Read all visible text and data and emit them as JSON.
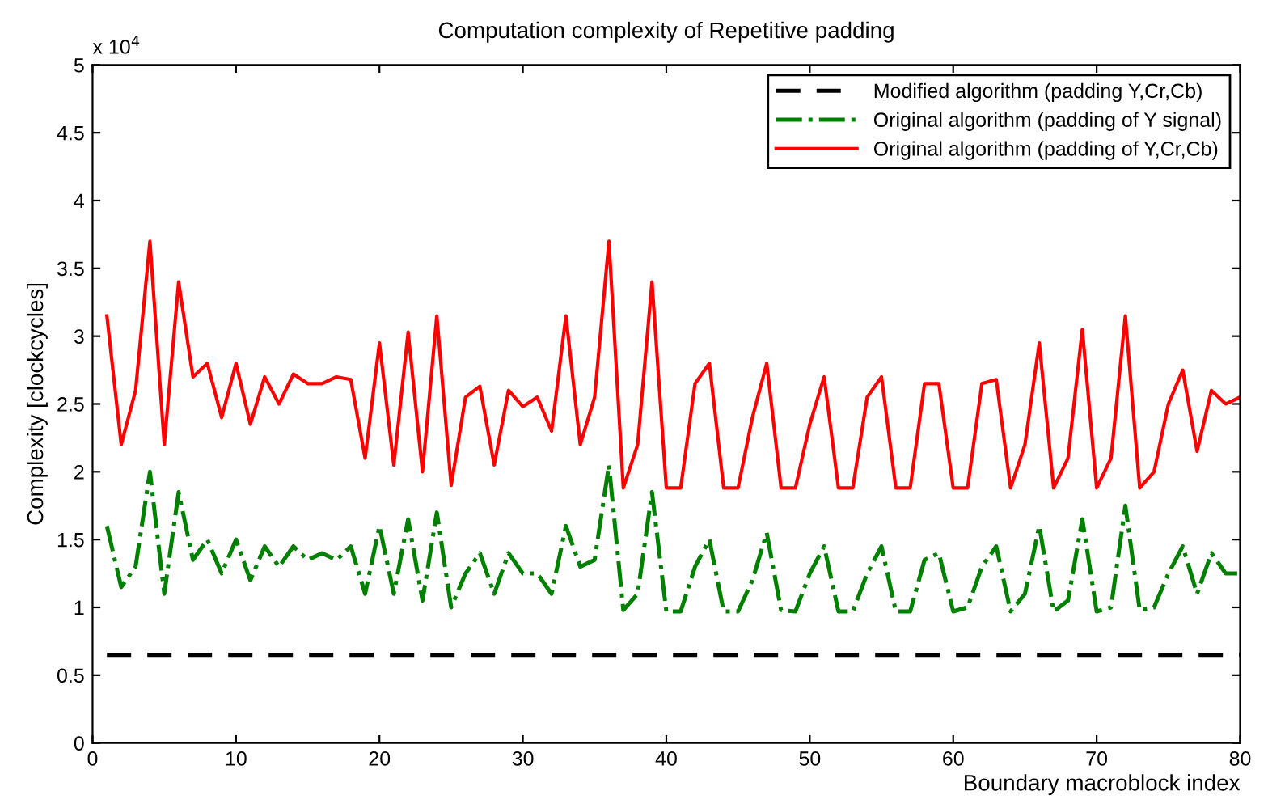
{
  "chart_data": {
    "type": "line",
    "title": "Computation complexity of Repetitive padding",
    "xlabel": "Boundary macroblock index",
    "ylabel": "Complexity [clockcycles]",
    "annotations": [
      "x 10$^{4}$"
    ],
    "x": [
      1,
      2,
      3,
      4,
      5,
      6,
      7,
      8,
      9,
      10,
      11,
      12,
      13,
      14,
      15,
      16,
      17,
      18,
      19,
      20,
      21,
      22,
      23,
      24,
      25,
      26,
      27,
      28,
      29,
      30,
      31,
      32,
      33,
      34,
      35,
      36,
      37,
      38,
      39,
      40,
      41,
      42,
      43,
      44,
      45,
      46,
      47,
      48,
      49,
      50,
      51,
      52,
      53,
      54,
      55,
      56,
      57,
      58,
      59,
      60,
      61,
      62,
      63,
      64,
      65,
      66,
      67,
      68,
      69,
      70,
      71,
      72,
      73,
      74,
      75,
      76,
      77,
      78,
      79,
      80
    ],
    "series": [
      {
        "name": "Modified algorithm (padding Y,Cr,Cb)",
        "color": "#000000",
        "line_style": "dashed",
        "values": [
          0.65,
          0.65,
          0.65,
          0.65,
          0.65,
          0.65,
          0.65,
          0.65,
          0.65,
          0.65,
          0.65,
          0.65,
          0.65,
          0.65,
          0.65,
          0.65,
          0.65,
          0.65,
          0.65,
          0.65,
          0.65,
          0.65,
          0.65,
          0.65,
          0.65,
          0.65,
          0.65,
          0.65,
          0.65,
          0.65,
          0.65,
          0.65,
          0.65,
          0.65,
          0.65,
          0.65,
          0.65,
          0.65,
          0.65,
          0.65,
          0.65,
          0.65,
          0.65,
          0.65,
          0.65,
          0.65,
          0.65,
          0.65,
          0.65,
          0.65,
          0.65,
          0.65,
          0.65,
          0.65,
          0.65,
          0.65,
          0.65,
          0.65,
          0.65,
          0.65,
          0.65,
          0.65,
          0.65,
          0.65,
          0.65,
          0.65,
          0.65,
          0.65,
          0.65,
          0.65,
          0.65,
          0.65,
          0.65,
          0.65,
          0.65,
          0.65,
          0.65,
          0.65,
          0.65,
          0.65
        ]
      },
      {
        "name": "Original algorithm (padding of Y signal)",
        "color": "#008000",
        "line_style": "dashdot",
        "values": [
          1.6,
          1.15,
          1.3,
          2.0,
          1.1,
          1.85,
          1.35,
          1.5,
          1.25,
          1.5,
          1.2,
          1.45,
          1.3,
          1.45,
          1.35,
          1.4,
          1.35,
          1.45,
          1.1,
          1.6,
          1.1,
          1.65,
          1.05,
          1.7,
          1.0,
          1.25,
          1.4,
          1.1,
          1.4,
          1.25,
          1.25,
          1.1,
          1.6,
          1.3,
          1.35,
          2.05,
          0.98,
          1.1,
          1.85,
          0.97,
          0.97,
          1.3,
          1.5,
          0.97,
          0.97,
          1.2,
          1.55,
          0.98,
          0.97,
          1.25,
          1.45,
          0.97,
          0.97,
          1.25,
          1.45,
          0.97,
          0.97,
          1.35,
          1.4,
          0.97,
          1.0,
          1.3,
          1.45,
          0.97,
          1.1,
          1.6,
          0.97,
          1.05,
          1.65,
          0.97,
          1.0,
          1.75,
          0.98,
          1.0,
          1.25,
          1.45,
          1.1,
          1.4,
          1.25,
          1.25
        ]
      },
      {
        "name": "Original algorithm (padding of Y,Cr,Cb)",
        "color": "#ff0000",
        "line_style": "solid",
        "values": [
          3.15,
          2.2,
          2.6,
          3.7,
          2.2,
          3.4,
          2.7,
          2.8,
          2.4,
          2.8,
          2.35,
          2.7,
          2.5,
          2.72,
          2.65,
          2.65,
          2.7,
          2.68,
          2.1,
          2.95,
          2.05,
          3.03,
          2.0,
          3.15,
          1.9,
          2.55,
          2.63,
          2.05,
          2.6,
          2.48,
          2.55,
          2.3,
          3.15,
          2.2,
          2.55,
          3.7,
          1.88,
          2.2,
          3.4,
          1.88,
          1.88,
          2.65,
          2.8,
          1.88,
          1.88,
          2.4,
          2.8,
          1.88,
          1.88,
          2.35,
          2.7,
          1.88,
          1.88,
          2.55,
          2.7,
          1.88,
          1.88,
          2.65,
          2.65,
          1.88,
          1.88,
          2.65,
          2.68,
          1.88,
          2.2,
          2.95,
          1.88,
          2.1,
          3.05,
          1.88,
          2.1,
          3.15,
          1.88,
          2.0,
          2.5,
          2.75,
          2.15,
          2.6,
          2.5,
          2.55
        ]
      }
    ],
    "xlim": [
      0,
      80
    ],
    "xticks": [
      0,
      10,
      20,
      30,
      40,
      50,
      60,
      70,
      80
    ],
    "ylim": [
      0,
      5
    ],
    "yticks": [
      0,
      0.5,
      1,
      1.5,
      2,
      2.5,
      3,
      3.5,
      4,
      4.5,
      5
    ],
    "legend": "top right",
    "grid": false
  }
}
